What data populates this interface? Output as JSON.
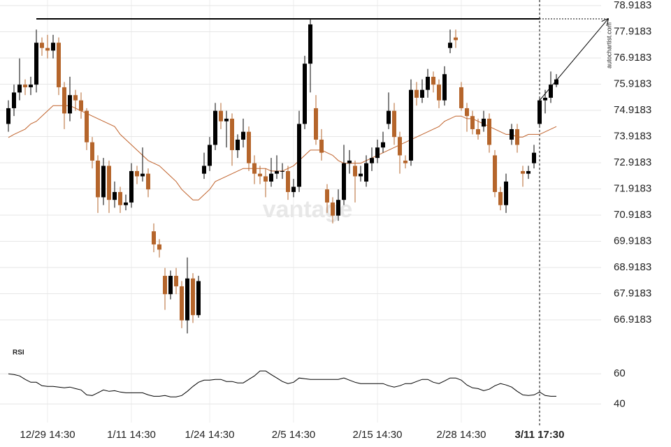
{
  "chart_data": [
    {
      "type": "candlestick",
      "categories": [
        null,
        null,
        null,
        null,
        null,
        null,
        null,
        "12/29 14:30",
        null,
        null,
        null,
        null,
        null,
        null,
        null,
        null,
        null,
        null,
        null,
        null,
        null,
        null,
        "1/11 14:30",
        null,
        null,
        null,
        null,
        null,
        null,
        null,
        null,
        null,
        null,
        null,
        null,
        null,
        "1/24 14:30",
        null,
        null,
        null,
        null,
        null,
        null,
        null,
        null,
        null,
        null,
        null,
        null,
        null,
        null,
        "2/5 14:30",
        null,
        null,
        null,
        null,
        null,
        null,
        null,
        null,
        null,
        null,
        null,
        null,
        null,
        null,
        "2/15 14:30",
        null,
        null,
        null,
        null,
        null,
        null,
        null,
        null,
        null,
        null,
        null,
        null,
        null,
        null,
        "2/28 14:30",
        null,
        null,
        null,
        null,
        null,
        null,
        null,
        null,
        null,
        null,
        null,
        null,
        null,
        "3/11 17:30",
        null,
        null,
        null
      ],
      "open": [
        74.4,
        75.0,
        75.6,
        75.9,
        75.8,
        75.9,
        77.5,
        77.3,
        77.2,
        77.5,
        75.8,
        74.8,
        75.5,
        75.3,
        74.9,
        73.7,
        73.0,
        71.6,
        72.8,
        71.5,
        71.8,
        71.3,
        71.4,
        72.6,
        72.4,
        72.5,
        70.3,
        69.8,
        68.6,
        67.9,
        68.6,
        68.2,
        66.9,
        68.5,
        67.1,
        72.5,
        72.8,
        73.6,
        74.9,
        74.5,
        74.6,
        73.4,
        73.8,
        74.1,
        72.9,
        72.5,
        72.4,
        72.2,
        72.5,
        72.6,
        72.6,
        71.8,
        72.0,
        74.4,
        76.7,
        75.0,
        73.8,
        71.9,
        71.4,
        70.9,
        71.5,
        72.9,
        72.8,
        72.4,
        72.2,
        72.9,
        73.1,
        73.5,
        74.4,
        74.9,
        73.9,
        73.0,
        73.0,
        75.7,
        75.4,
        75.7,
        76.2,
        75.9,
        75.3,
        77.3,
        77.7,
        75.8,
        75.0,
        74.7,
        74.2,
        74.3,
        74.6,
        73.2,
        71.8,
        71.3,
        73.8,
        74.2,
        72.6,
        72.5,
        72.9,
        74.4,
        75.3,
        75.4,
        75.9
      ],
      "high": [
        75.3,
        75.9,
        76.9,
        76.1,
        76.2,
        78.0,
        77.7,
        77.8,
        77.8,
        77.7,
        76.0,
        76.2,
        75.7,
        75.6,
        75.0,
        73.9,
        73.2,
        73.1,
        73.0,
        72.2,
        72.0,
        71.7,
        72.9,
        72.8,
        73.5,
        72.7,
        70.6,
        70.0,
        68.9,
        68.8,
        68.9,
        68.4,
        69.3,
        68.7,
        68.6,
        73.3,
        73.9,
        75.2,
        75.2,
        74.9,
        74.8,
        74.0,
        74.6,
        74.3,
        73.2,
        72.8,
        72.7,
        73.1,
        73.2,
        72.9,
        72.8,
        72.3,
        74.9,
        77.0,
        78.4,
        75.5,
        74.2,
        72.1,
        71.6,
        71.9,
        73.6,
        73.4,
        73.0,
        72.8,
        73.2,
        73.5,
        73.8,
        74.1,
        75.6,
        75.2,
        74.1,
        73.2,
        76.1,
        76.0,
        76.1,
        76.5,
        76.4,
        76.1,
        76.6,
        78.0,
        78.0,
        76.0,
        75.2,
        74.9,
        74.6,
        74.9,
        74.8,
        73.4,
        72.0,
        72.5,
        74.4,
        74.4,
        72.8,
        72.8,
        73.6,
        75.4,
        75.7,
        76.4,
        76.3
      ],
      "low": [
        74.1,
        74.7,
        75.3,
        75.5,
        75.5,
        75.6,
        77.0,
        76.9,
        76.9,
        75.5,
        74.2,
        74.5,
        74.9,
        74.6,
        73.4,
        72.7,
        71.0,
        71.3,
        71.0,
        71.2,
        71.0,
        71.1,
        71.2,
        72.1,
        72.2,
        71.6,
        69.5,
        69.3,
        67.3,
        67.7,
        67.9,
        66.6,
        66.4,
        66.8,
        67.0,
        72.3,
        72.6,
        73.4,
        74.2,
        73.5,
        72.8,
        73.1,
        73.5,
        72.6,
        72.1,
        72.1,
        71.6,
        72.0,
        72.3,
        72.3,
        71.5,
        71.6,
        71.8,
        74.2,
        75.6,
        73.6,
        73.0,
        71.0,
        70.6,
        70.7,
        71.3,
        72.5,
        71.4,
        72.2,
        72.0,
        72.6,
        72.9,
        73.3,
        74.2,
        73.6,
        72.5,
        72.7,
        72.8,
        75.1,
        75.2,
        75.4,
        75.6,
        75.0,
        75.1,
        77.1,
        77.3,
        74.9,
        74.1,
        74.0,
        73.8,
        74.1,
        73.3,
        71.6,
        71.1,
        71.0,
        73.6,
        73.3,
        72.0,
        72.3,
        72.7,
        74.3,
        74.8,
        75.2,
        75.8
      ],
      "close": [
        75.0,
        75.6,
        75.9,
        75.8,
        75.9,
        77.5,
        77.3,
        77.2,
        77.5,
        75.8,
        74.8,
        75.5,
        75.3,
        74.9,
        73.7,
        73.0,
        71.6,
        72.8,
        71.5,
        71.8,
        71.3,
        71.4,
        72.6,
        72.4,
        72.5,
        71.9,
        69.8,
        69.6,
        67.9,
        68.6,
        68.2,
        66.9,
        68.5,
        67.1,
        68.4,
        72.8,
        73.6,
        74.9,
        74.5,
        74.6,
        73.4,
        73.8,
        74.1,
        72.9,
        72.5,
        72.4,
        72.2,
        72.5,
        72.6,
        72.6,
        71.8,
        72.0,
        74.4,
        76.7,
        78.2,
        73.8,
        73.3,
        71.4,
        70.9,
        71.5,
        72.9,
        73.0,
        72.4,
        72.5,
        72.9,
        73.1,
        73.5,
        73.7,
        74.9,
        73.9,
        73.2,
        72.9,
        75.7,
        75.4,
        75.7,
        76.2,
        75.9,
        75.3,
        76.3,
        77.5,
        77.6,
        75.0,
        74.7,
        74.2,
        74.0,
        74.6,
        73.6,
        71.8,
        71.3,
        72.2,
        74.2,
        73.6,
        72.5,
        72.6,
        73.3,
        75.3,
        75.4,
        75.9,
        76.1
      ],
      "up_color": "#000000",
      "down_color": "#b5652b",
      "moving_average": {
        "color": "#c0622b",
        "values": [
          73.88,
          74.0,
          74.1,
          74.2,
          74.4,
          74.5,
          74.7,
          74.9,
          75.1,
          75.1,
          75.1,
          75.1,
          75.0,
          74.9,
          74.8,
          74.7,
          74.6,
          74.5,
          74.4,
          74.3,
          74.0,
          73.8,
          73.6,
          73.4,
          73.2,
          73.0,
          72.9,
          72.8,
          72.6,
          72.4,
          72.2,
          71.9,
          71.7,
          71.5,
          71.5,
          71.7,
          71.9,
          72.2,
          72.3,
          72.4,
          72.5,
          72.6,
          72.7,
          72.7,
          72.7,
          72.7,
          72.7,
          72.6,
          72.6,
          72.6,
          72.7,
          72.8,
          73.0,
          73.2,
          73.4,
          73.4,
          73.4,
          73.3,
          73.2,
          73.0,
          72.9,
          72.9,
          72.9,
          72.9,
          73.0,
          73.1,
          73.2,
          73.3,
          73.4,
          73.5,
          73.6,
          73.7,
          73.8,
          73.9,
          74.0,
          74.1,
          74.2,
          74.3,
          74.5,
          74.6,
          74.7,
          74.7,
          74.6,
          74.6,
          74.5,
          74.4,
          74.3,
          74.2,
          74.1,
          74.0,
          74.0,
          73.9,
          73.9,
          74.0,
          74.0,
          74.0,
          74.1,
          74.2,
          74.3
        ]
      },
      "resistance": 78.41,
      "ylim": [
        66.9183,
        78.9183
      ],
      "yticks": [
        66.9183,
        67.9183,
        68.9183,
        69.9183,
        70.9183,
        71.9183,
        72.9183,
        73.9183,
        74.9183,
        75.9183,
        76.9183,
        77.9183,
        78.9183
      ],
      "grid": true
    },
    {
      "type": "line",
      "title": "RSI",
      "color": "#000000",
      "values": [
        60.0,
        59.5,
        58.6,
        56.3,
        54.4,
        54.4,
        52.1,
        51.6,
        51.6,
        51.2,
        50.7,
        51.2,
        50.2,
        49.3,
        46.0,
        45.6,
        47.4,
        49.3,
        48.4,
        48.8,
        47.9,
        47.4,
        47.4,
        47.4,
        47.4,
        46.0,
        45.1,
        45.1,
        45.6,
        44.7,
        44.7,
        45.6,
        48.4,
        51.6,
        54.4,
        55.8,
        55.8,
        56.3,
        56.3,
        54.9,
        54.9,
        54.0,
        54.0,
        56.3,
        58.6,
        61.9,
        61.9,
        59.5,
        57.2,
        54.9,
        53.5,
        54.4,
        57.2,
        56.7,
        56.3,
        56.3,
        56.3,
        56.3,
        56.3,
        56.3,
        57.2,
        55.8,
        54.4,
        53.5,
        53.5,
        53.5,
        53.5,
        53.5,
        52.1,
        51.2,
        52.1,
        53.5,
        53.5,
        54.9,
        56.3,
        56.3,
        54.4,
        53.5,
        55.3,
        57.2,
        57.2,
        55.8,
        52.6,
        50.7,
        50.2,
        48.8,
        49.8,
        52.1,
        53.5,
        52.6,
        51.2,
        48.4,
        46.0,
        45.6,
        46.0,
        47.9,
        45.6,
        45.1,
        45.1
      ],
      "ylim": [
        30,
        80
      ],
      "yticks": [
        40,
        60
      ],
      "grid": true
    }
  ],
  "source": "autochartist.com",
  "watermark": "vantage"
}
